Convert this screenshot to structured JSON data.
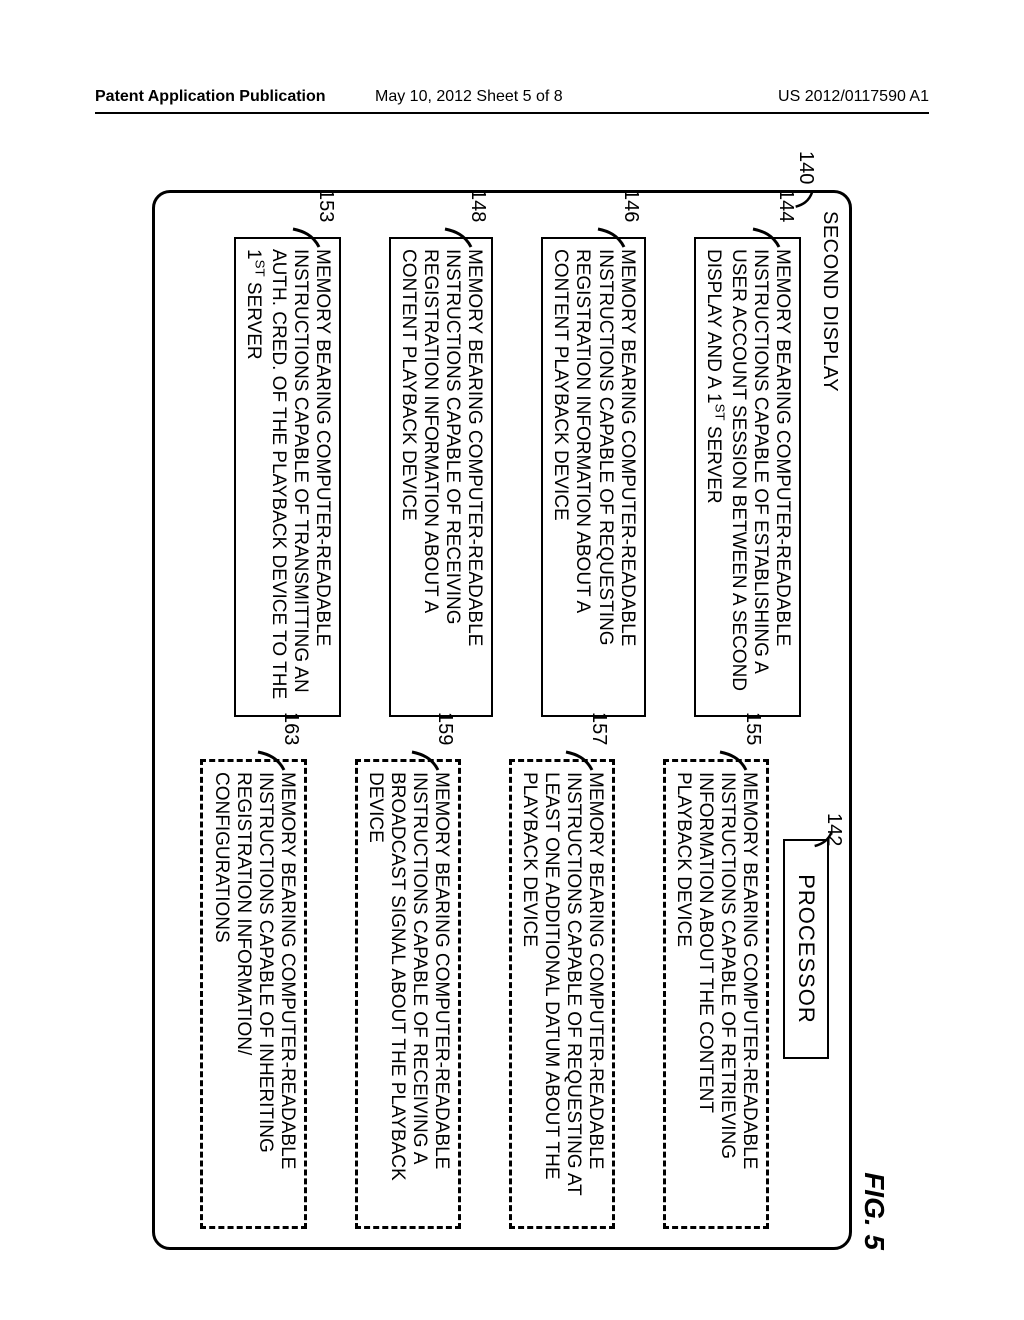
{
  "header": {
    "left": "Patent Application Publication",
    "mid": "May 10, 2012  Sheet 5 of 8",
    "right": "US 2012/0117590 A1"
  },
  "figure_label": "FIG. 5",
  "outer": {
    "title": "SECOND DISPLAY",
    "ref": "140"
  },
  "processor": {
    "label": "PROCESSOR",
    "ref": "142"
  },
  "left_blocks": [
    {
      "ref": "144",
      "text": "MEMORY BEARING COMPUTER-READABLE INSTRUCTIONS CAPABLE OF ESTABLISHING A USER ACCOUNT SESSION BETWEEN A SECOND DISPLAY AND A 1<sup>ST</sup> SERVER"
    },
    {
      "ref": "146",
      "text": "MEMORY BEARING COMPUTER-READABLE INSTRUCTIONS CAPABLE OF REQUESTING REGISTRATION INFORMATION ABOUT A CONTENT PLAYBACK DEVICE"
    },
    {
      "ref": "148",
      "text": "MEMORY BEARING COMPUTER-READABLE INSTRUCTIONS CAPABLE OF RECEIVING REGISTRATION INFORMATION ABOUT A CONTENT PLAYBACK DEVICE"
    },
    {
      "ref": "153",
      "text": "MEMORY BEARING COMPUTER-READABLE INSTRUCTIONS CAPABLE OF TRANSMITTING AN AUTH. CRED. OF THE PLAYBACK DEVICE TO THE 1<sup>ST</sup> SERVER"
    }
  ],
  "right_blocks": [
    {
      "ref": "155",
      "text": "MEMORY BEARING COMPUTER-READABLE INSTRUCTIONS CAPABLE OF RETRIEVING INFORMATION ABOUT THE CONTENT PLAYBACK DEVICE"
    },
    {
      "ref": "157",
      "text": "MEMORY BEARING COMPUTER-READABLE INSTRUCTIONS CAPABLE OF REQUESTING AT LEAST ONE ADDITIONAL DATUM ABOUT THE PLAYBACK DEVICE"
    },
    {
      "ref": "159",
      "text": "MEMORY BEARING COMPUTER-READABLE INSTRUCTIONS CAPABLE OF RECEIVING A BROADCAST SIGNAL ABOUT THE PLAYBACK DEVICE"
    },
    {
      "ref": "163",
      "text": "MEMORY BEARING COMPUTER-READABLE INSTRUCTIONS CAPABLE OF INHERITING REGISTRATION INFORMATION/ CONFIGURATIONS"
    }
  ],
  "colors": {
    "stroke": "#000000",
    "bg": "#ffffff"
  }
}
